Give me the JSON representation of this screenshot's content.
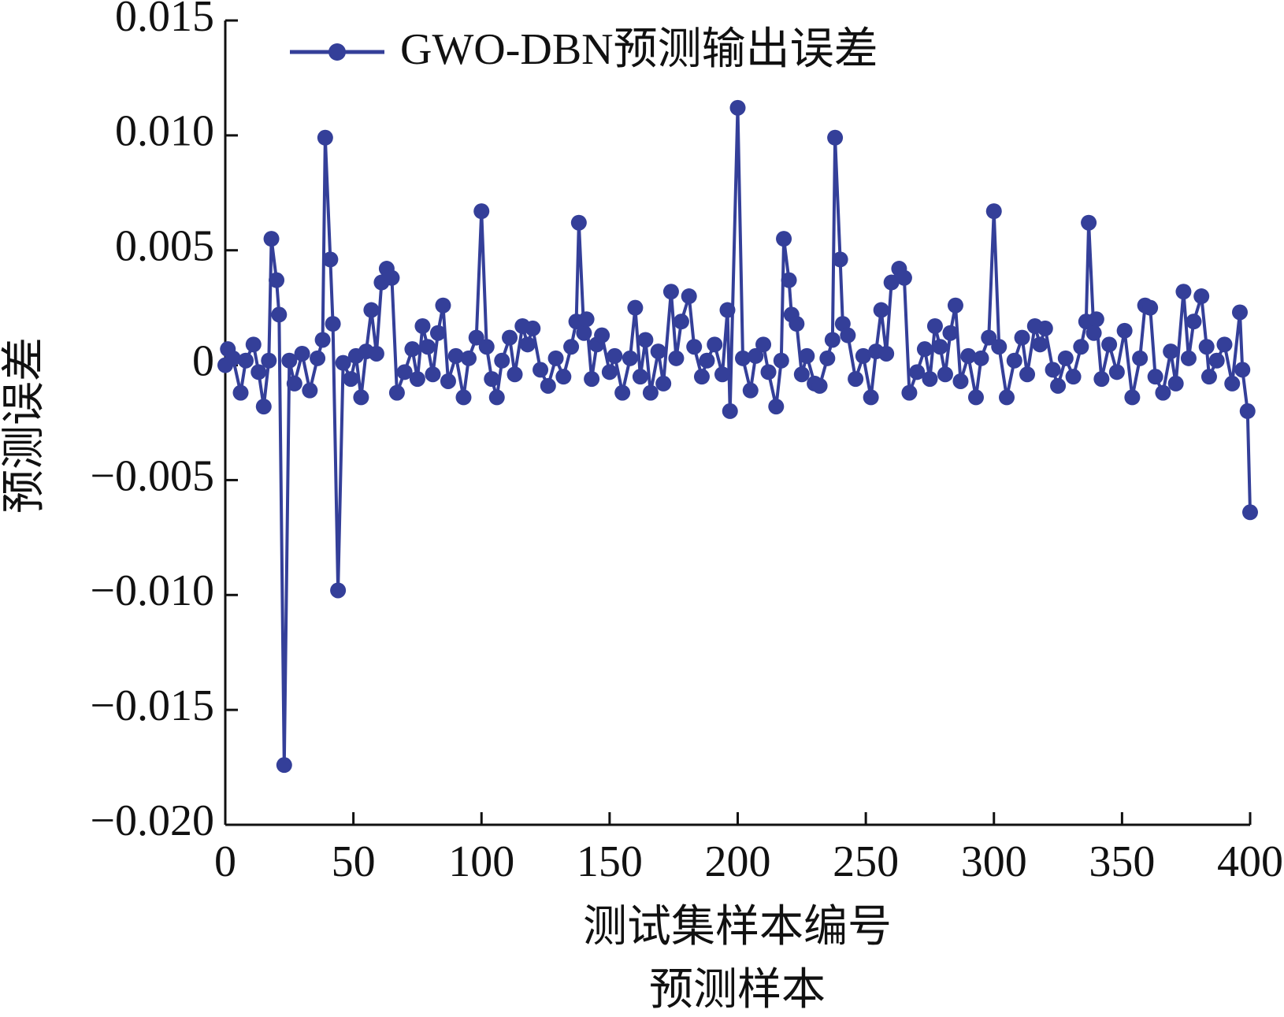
{
  "chart_data": {
    "type": "line",
    "ylabel": "预测误差",
    "xlabel": "测试集样本编号",
    "caption": "预测样本",
    "legend": "upper left",
    "xlim": [
      0,
      400
    ],
    "xticks": [
      0,
      50,
      100,
      150,
      200,
      250,
      300,
      350,
      400
    ],
    "ylim": [
      -0.02,
      0.015
    ],
    "yticks": [
      {
        "value": -0.02,
        "label": "−0.020"
      },
      {
        "value": -0.015,
        "label": "−0.015"
      },
      {
        "value": -0.01,
        "label": "−0.010"
      },
      {
        "value": -0.005,
        "label": "−0.005"
      },
      0,
      0.005,
      {
        "value": 0.01,
        "label": "0.010"
      },
      0.015
    ],
    "x": [
      0,
      1,
      3,
      6,
      8,
      11,
      13,
      15,
      17,
      18,
      20,
      21,
      23,
      25,
      27,
      30,
      33,
      36,
      38,
      39,
      41,
      42,
      44,
      46,
      49,
      51,
      53,
      55,
      57,
      59,
      61,
      63,
      65,
      67,
      70,
      73,
      75,
      77,
      79,
      81,
      83,
      85,
      87,
      90,
      93,
      95,
      98,
      100,
      102,
      104,
      106,
      108,
      111,
      113,
      116,
      118,
      120,
      123,
      126,
      129,
      132,
      135,
      137,
      138,
      140,
      141,
      143,
      145,
      147,
      150,
      152,
      155,
      158,
      160,
      162,
      164,
      166,
      169,
      171,
      174,
      176,
      178,
      181,
      183,
      186,
      188,
      191,
      194,
      196,
      197,
      200,
      202,
      205,
      207,
      210,
      212,
      215,
      217,
      218,
      220,
      221,
      223,
      225,
      227,
      230,
      232,
      235,
      237,
      238,
      240,
      241,
      243,
      246,
      249,
      252,
      254,
      256,
      258,
      260,
      263,
      265,
      267,
      270,
      273,
      275,
      277,
      279,
      281,
      283,
      285,
      287,
      290,
      293,
      295,
      298,
      300,
      302,
      305,
      308,
      311,
      313,
      316,
      318,
      320,
      323,
      325,
      328,
      331,
      334,
      336,
      337,
      339,
      340,
      342,
      345,
      348,
      351,
      354,
      357,
      359,
      361,
      363,
      366,
      369,
      371,
      374,
      376,
      378,
      381,
      383,
      384,
      387,
      390,
      393,
      396,
      397,
      399,
      400
    ],
    "series": [
      {
        "name": "GWO-DBN预测输出误差",
        "color": "#343f99",
        "values": [
          0,
          0.0007,
          0.0003,
          -0.0012,
          0.0002,
          0.0009,
          -0.0003,
          -0.0018,
          0.0002,
          0.0055,
          0.0037,
          0.0022,
          -0.0174,
          0.0002,
          -0.0008,
          0.0005,
          -0.0011,
          0.0003,
          0.0011,
          0.0099,
          0.0046,
          0.0018,
          -0.0098,
          0.0001,
          -0.0006,
          0.0004,
          -0.0014,
          0.0006,
          0.0024,
          0.0005,
          0.0036,
          0.0042,
          0.0038,
          -0.0012,
          -0.0003,
          0.0007,
          -0.0006,
          0.0017,
          0.0008,
          -0.0004,
          0.0014,
          0.0026,
          -0.0007,
          0.0004,
          -0.0014,
          0.0003,
          0.0012,
          0.0067,
          0.0008,
          -0.0006,
          -0.0014,
          0.0002,
          0.0012,
          -0.0004,
          0.0017,
          0.0009,
          0.0016,
          -0.0002,
          -0.0009,
          0.0003,
          -0.0005,
          0.0008,
          0.0019,
          0.0062,
          0.0014,
          0.002,
          -0.0006,
          0.0009,
          0.0013,
          -0.0003,
          0.0004,
          -0.0012,
          0.0003,
          0.0025,
          -0.0005,
          0.0011,
          -0.0012,
          0.0006,
          -0.0008,
          0.0032,
          0.0003,
          0.0019,
          0.003,
          0.0008,
          -0.0005,
          0.0002,
          0.0009,
          -0.0004,
          0.0024,
          -0.002,
          0.0112,
          0.0003,
          -0.0011,
          0.0004,
          0.0009,
          -0.0003,
          -0.0018,
          0.0002,
          0.0055,
          0.0037,
          0.0022,
          0.0018,
          -0.0004,
          0.0004,
          -0.0008,
          -0.0009,
          0.0003,
          0.0011,
          0.0099,
          0.0046,
          0.0018,
          0.0013,
          -0.0006,
          0.0004,
          -0.0014,
          0.0006,
          0.0024,
          0.0005,
          0.0036,
          0.0042,
          0.0038,
          -0.0012,
          -0.0003,
          0.0007,
          -0.0006,
          0.0017,
          0.0008,
          -0.0004,
          0.0014,
          0.0026,
          -0.0007,
          0.0004,
          -0.0014,
          0.0003,
          0.0012,
          0.0067,
          0.0008,
          -0.0014,
          0.0002,
          0.0012,
          -0.0004,
          0.0017,
          0.0009,
          0.0016,
          -0.0002,
          -0.0009,
          0.0003,
          -0.0005,
          0.0008,
          0.0019,
          0.0062,
          0.0014,
          0.002,
          -0.0006,
          0.0009,
          -0.0003,
          0.0015,
          -0.0014,
          0.0003,
          0.0026,
          0.0025,
          -0.0005,
          -0.0012,
          0.0006,
          -0.0008,
          0.0032,
          0.0003,
          0.0019,
          0.003,
          0.0008,
          -0.0005,
          0.0002,
          0.0009,
          -0.0008,
          0.0023,
          -0.0002,
          -0.002,
          -0.0064
        ]
      }
    ]
  }
}
